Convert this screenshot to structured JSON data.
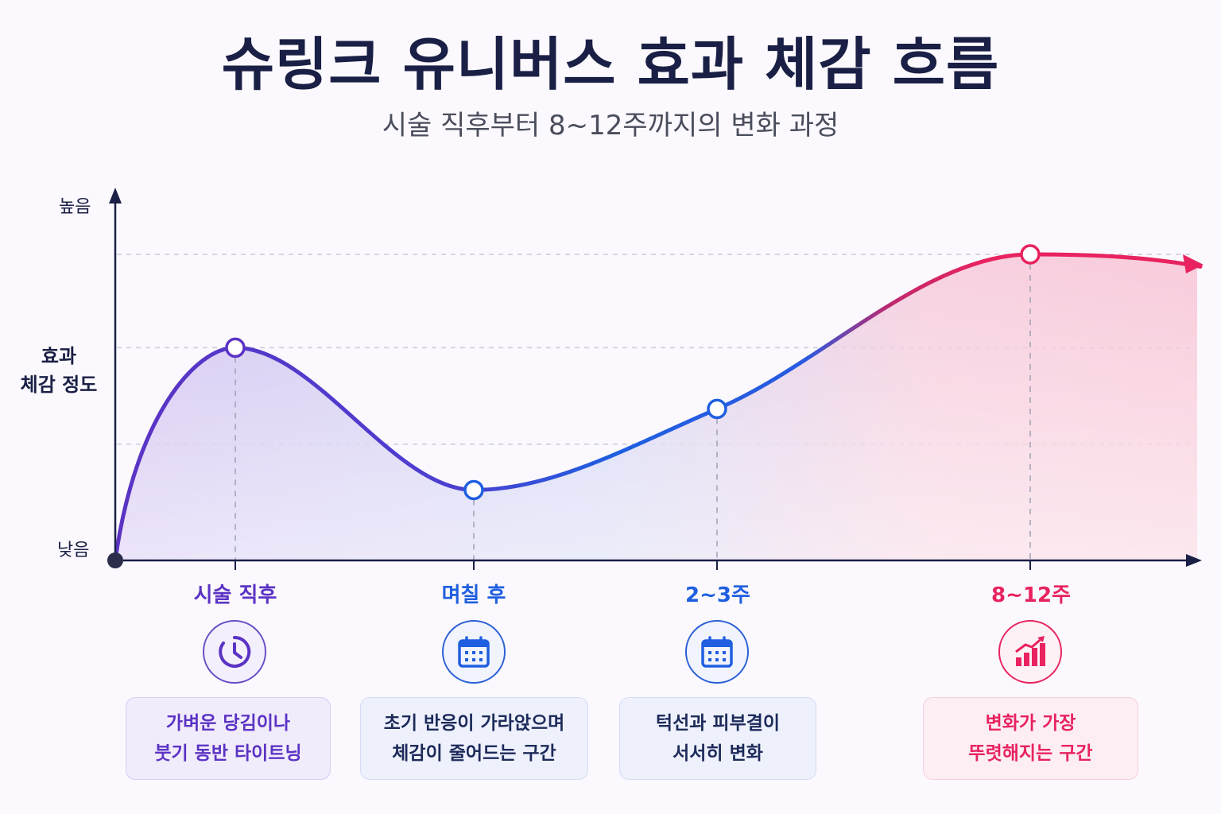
{
  "title": "슈링크 유니버스 효과 체감 흐름",
  "subtitle": "시술 직후부터 8~12주까지의 변화 과정",
  "chart_data": {
    "type": "line",
    "ylabel_lines": [
      "효과",
      "체감 정도"
    ],
    "y_ticks": [
      "높음",
      "낮음"
    ],
    "ylim": [
      0,
      100
    ],
    "grid": "horizontal dashed",
    "series": [
      {
        "points": [
          {
            "t": 0,
            "y": 0
          },
          {
            "t": 1,
            "y": 69.5
          },
          {
            "t": 2,
            "y": 23
          },
          {
            "t": 3,
            "y": 49.5
          },
          {
            "t": 4,
            "y": 100
          },
          {
            "t": 4.6,
            "y": 96
          }
        ]
      }
    ],
    "markers": [
      {
        "category": "시술 직후",
        "y": 69.5
      },
      {
        "category": "며칠 후",
        "y": 23
      },
      {
        "category": "2~3주",
        "y": 49.5
      },
      {
        "category": "8~12주",
        "y": 100
      }
    ],
    "colors": [
      "#5b33c4",
      "#1f5fe0",
      "#e8235f"
    ]
  },
  "stages": [
    {
      "label": "시술 직후",
      "icon": "clock-icon",
      "color": "#5b33c4",
      "desc": [
        "가벼운 당김이나",
        "붓기 동반 타이트닝"
      ]
    },
    {
      "label": "며칠 후",
      "icon": "calendar-icon",
      "color": "#1f5fe0",
      "desc": [
        "초기 반응이 가라앉으며",
        "체감이 줄어드는 구간"
      ]
    },
    {
      "label": "2~3주",
      "icon": "calendar-icon",
      "color": "#1f5fe0",
      "desc": [
        "턱선과 피부결이",
        "서서히 변화"
      ]
    },
    {
      "label": "8~12주",
      "icon": "growth-chart-icon",
      "color": "#e8235f",
      "desc": [
        "변화가 가장",
        "뚜렷해지는 구간"
      ]
    }
  ]
}
